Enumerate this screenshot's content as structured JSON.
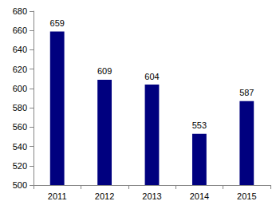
{
  "chart_data": {
    "type": "bar",
    "categories": [
      "2011",
      "2012",
      "2013",
      "2014",
      "2015"
    ],
    "values": [
      659,
      609,
      604,
      553,
      587
    ],
    "color": "#00007f",
    "ylim": [
      500,
      680
    ],
    "yticks": [
      500,
      520,
      540,
      560,
      580,
      600,
      620,
      640,
      660,
      680
    ],
    "grid": false,
    "data_labels": true
  }
}
